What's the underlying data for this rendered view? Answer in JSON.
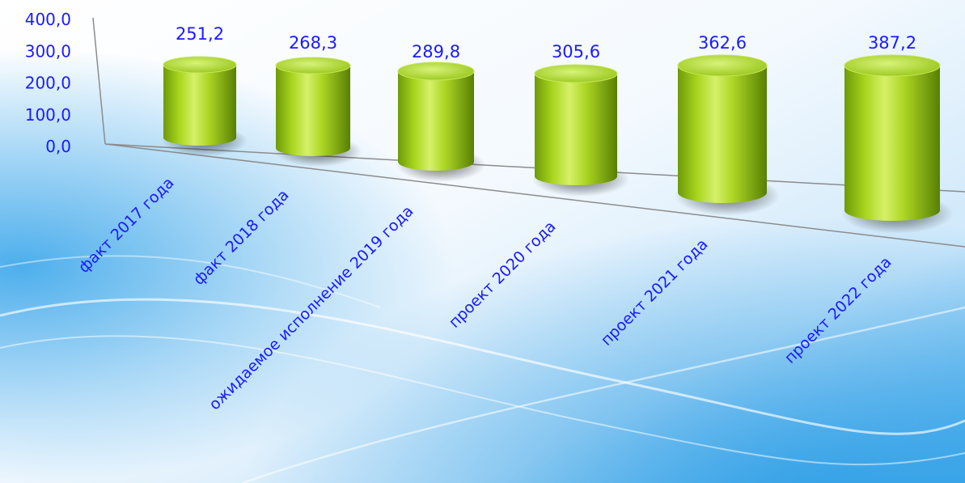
{
  "chart_data": {
    "type": "bar",
    "categories": [
      "факт 2017 года",
      "факт 2018 года",
      "ожидаемое исполнение 2019 года",
      "проект 2020 года",
      "проект 2021 года",
      "проект 2022 года"
    ],
    "values": [
      251.2,
      268.3,
      289.8,
      305.6,
      362.6,
      387.2
    ],
    "value_labels": [
      "251,2",
      "268,3",
      "289,8",
      "305,6",
      "362,6",
      "387,2"
    ],
    "y_ticks": [
      "400,0",
      "300,0",
      "200,0",
      "100,0",
      "0,0"
    ],
    "ylim": [
      0,
      400
    ],
    "title": "",
    "xlabel": "",
    "ylabel": "",
    "grid": false,
    "legend": "none",
    "style": "3d-cylinder",
    "colors": {
      "bar": "#a6d21c",
      "bar_dark": "#5f8a05",
      "bar_light": "#e2f58a",
      "text": "#1a1aff",
      "axis": "#8c8c8c"
    }
  }
}
